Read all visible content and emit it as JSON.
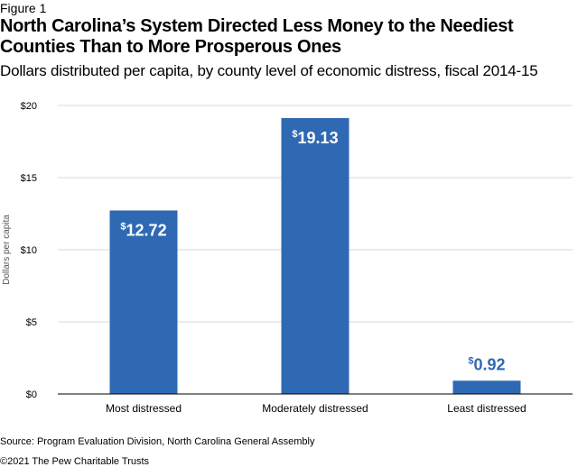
{
  "figure_label": "Figure 1",
  "title": "North Carolina’s System Directed Less Money to the Neediest Counties Than to More Prosperous Ones",
  "subtitle": "Dollars distributed per capita, by county level of economic distress, fiscal 2014-15",
  "source": "Source: Program Evaluation Division, North Carolina General Assembly",
  "copyright": "©2021 The Pew Charitable Trusts",
  "colors": {
    "bar": "#2f69b3",
    "grid": "#d9d9d9",
    "axis": "#000000",
    "label_inside": "#ffffff",
    "label_outside": "#2f69b3"
  },
  "chart_data": {
    "type": "bar",
    "categories": [
      "Most distressed",
      "Moderately distressed",
      "Least distressed"
    ],
    "values": [
      12.72,
      19.13,
      0.92
    ],
    "data_labels": [
      "12.72",
      "19.13",
      "0.92"
    ],
    "data_label_prefix": "$",
    "ylabel": "Dollars per capita",
    "ylim": [
      0,
      20
    ],
    "yticks": [
      0,
      5,
      10,
      15,
      20
    ],
    "ytick_labels": [
      "$0",
      "$5",
      "$10",
      "$15",
      "$20"
    ],
    "grid": true,
    "legend": false
  }
}
